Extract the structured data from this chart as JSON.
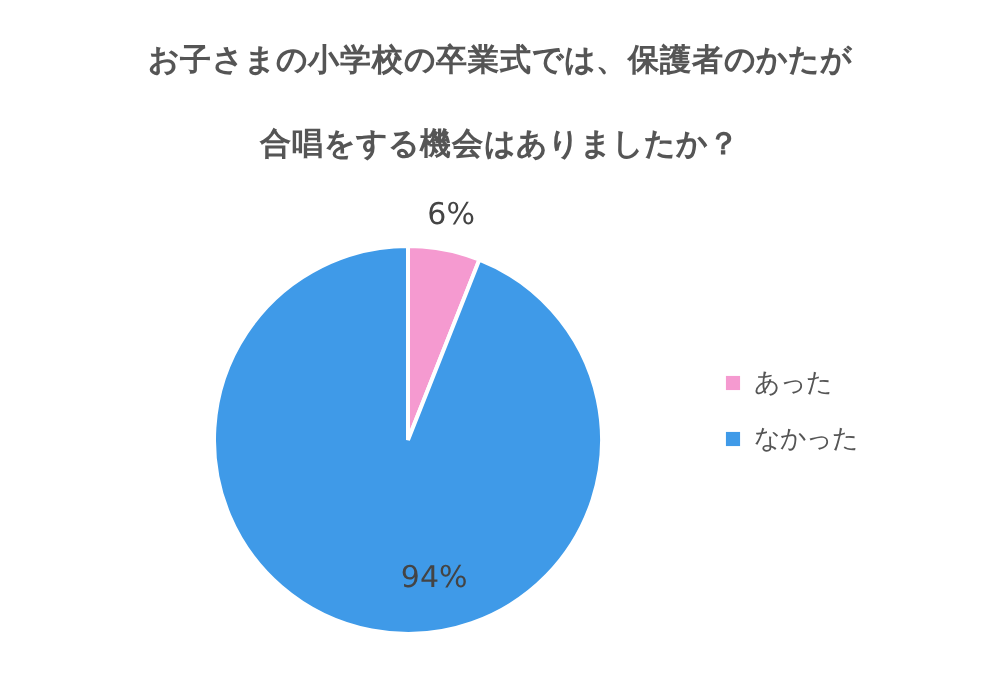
{
  "chart_data": {
    "type": "pie",
    "title": "お子さまの小学校の卒業式では、保護者のかたが合唱をする機会はありましたか？",
    "categories": [
      "あった",
      "なかった"
    ],
    "values": [
      6,
      94
    ],
    "colors": [
      "#f59ad0",
      "#3f9ae8"
    ],
    "value_labels": [
      "6%",
      "94%"
    ],
    "legend": "right"
  }
}
